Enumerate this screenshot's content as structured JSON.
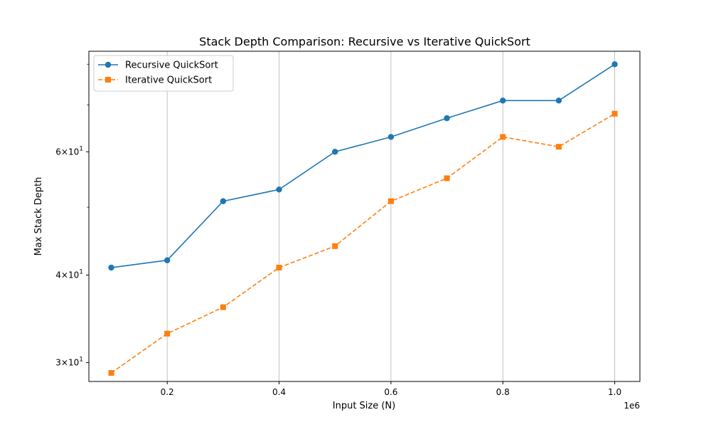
{
  "chart_data": {
    "type": "line",
    "title": "Stack Depth Comparison: Recursive vs Iterative QuickSort",
    "xlabel": "Input Size (N)",
    "ylabel": "Max Stack Depth",
    "x_offset_label": "1e6",
    "x": [
      100000,
      200000,
      300000,
      400000,
      500000,
      600000,
      700000,
      800000,
      900000,
      1000000
    ],
    "xlim": [
      60000,
      1045000
    ],
    "x_ticks": [
      200000,
      400000,
      600000,
      800000,
      1000000
    ],
    "x_tick_labels": [
      "0.2",
      "0.4",
      "0.6",
      "0.8",
      "1.0"
    ],
    "yscale": "log",
    "ylim": [
      28.2,
      83.5
    ],
    "y_major_ticks": [
      {
        "value": 30,
        "base": "3×10",
        "exp": "1"
      },
      {
        "value": 40,
        "base": "4×10",
        "exp": "1"
      },
      {
        "value": 60,
        "base": "6×10",
        "exp": "1"
      }
    ],
    "y_minor_ticks": [
      50,
      70,
      80
    ],
    "grid": "x",
    "legend_position": "upper-left",
    "series": [
      {
        "name": "Recursive QuickSort",
        "values": [
          41,
          42,
          51,
          53,
          60,
          63,
          67,
          71,
          71,
          80
        ],
        "color": "#1f77b4",
        "marker": "circle",
        "linestyle": "solid"
      },
      {
        "name": "Iterative QuickSort",
        "values": [
          29,
          33,
          36,
          41,
          44,
          51,
          55,
          63,
          61,
          68
        ],
        "color": "#ff7f0e",
        "marker": "square",
        "linestyle": "dashed"
      }
    ]
  }
}
